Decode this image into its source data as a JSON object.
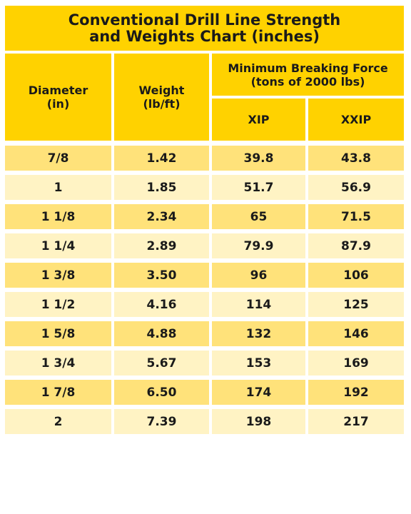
{
  "title": {
    "line1": "Conventional Drill Line Strength",
    "line2": "and Weights Chart (inches)"
  },
  "header": {
    "diameter": "Diameter",
    "diameter_unit": "(in)",
    "weight": "Weight",
    "weight_unit": "(lb/ft)",
    "mbf": "Minimum Breaking Force",
    "mbf_unit": "(tons of 2000 lbs)",
    "xip": "XIP",
    "xxip": "XXIP"
  },
  "rows": [
    {
      "diameter": "7/8",
      "weight": "1.42",
      "xip": "39.8",
      "xxip": "43.8"
    },
    {
      "diameter": "1",
      "weight": "1.85",
      "xip": "51.7",
      "xxip": "56.9"
    },
    {
      "diameter": "1 1/8",
      "weight": "2.34",
      "xip": "65",
      "xxip": "71.5"
    },
    {
      "diameter": "1 1/4",
      "weight": "2.89",
      "xip": "79.9",
      "xxip": "87.9"
    },
    {
      "diameter": "1 3/8",
      "weight": "3.50",
      "xip": "96",
      "xxip": "106"
    },
    {
      "diameter": "1 1/2",
      "weight": "4.16",
      "xip": "114",
      "xxip": "125"
    },
    {
      "diameter": "1 5/8",
      "weight": "4.88",
      "xip": "132",
      "xxip": "146"
    },
    {
      "diameter": "1 3/4",
      "weight": "5.67",
      "xip": "153",
      "xxip": "169"
    },
    {
      "diameter": "1 7/8",
      "weight": "6.50",
      "xip": "174",
      "xxip": "192"
    },
    {
      "diameter": "2",
      "weight": "7.39",
      "xip": "198",
      "xxip": "217"
    }
  ],
  "colors": {
    "header": "#ffd200",
    "row_dark": "#ffe27a",
    "row_light": "#fff3c4"
  }
}
